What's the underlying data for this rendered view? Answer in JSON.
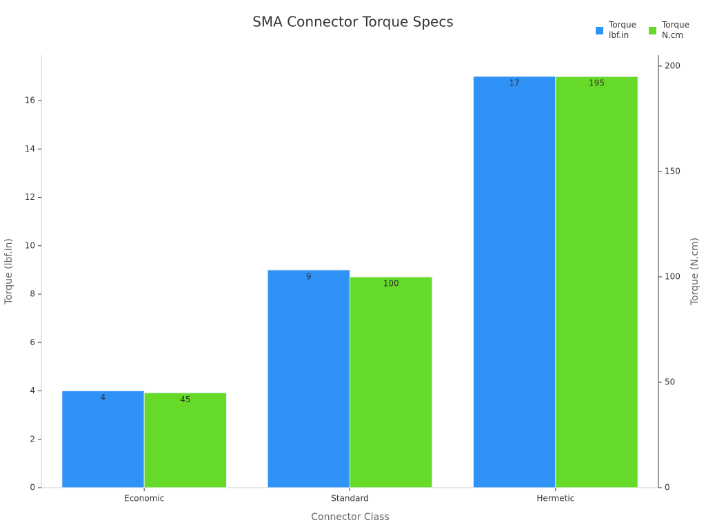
{
  "chart_data": {
    "type": "bar",
    "title": "SMA Connector Torque Specs",
    "x_label": "Connector Class",
    "y_label": "Torque (lbf.in)",
    "y2_label": "Torque (N.cm)",
    "categories": [
      "Economic",
      "Standard",
      "Hermetic"
    ],
    "series": [
      {
        "name": "Torque lbf.in",
        "color": "#2f92f7",
        "values": [
          4,
          9,
          17
        ]
      },
      {
        "name": "Torque N.cm",
        "color": "#66da29",
        "values": [
          45,
          100,
          195
        ],
        "axis": "y2"
      }
    ],
    "ylim": [
      0,
      17.88
    ],
    "yticks": [
      0,
      2,
      4,
      6,
      8,
      10,
      12,
      14,
      16
    ],
    "y2lim": [
      0,
      205.2
    ],
    "y2ticks": [
      0,
      50,
      100,
      150,
      200
    ],
    "legend": "top-right",
    "grid": false
  }
}
